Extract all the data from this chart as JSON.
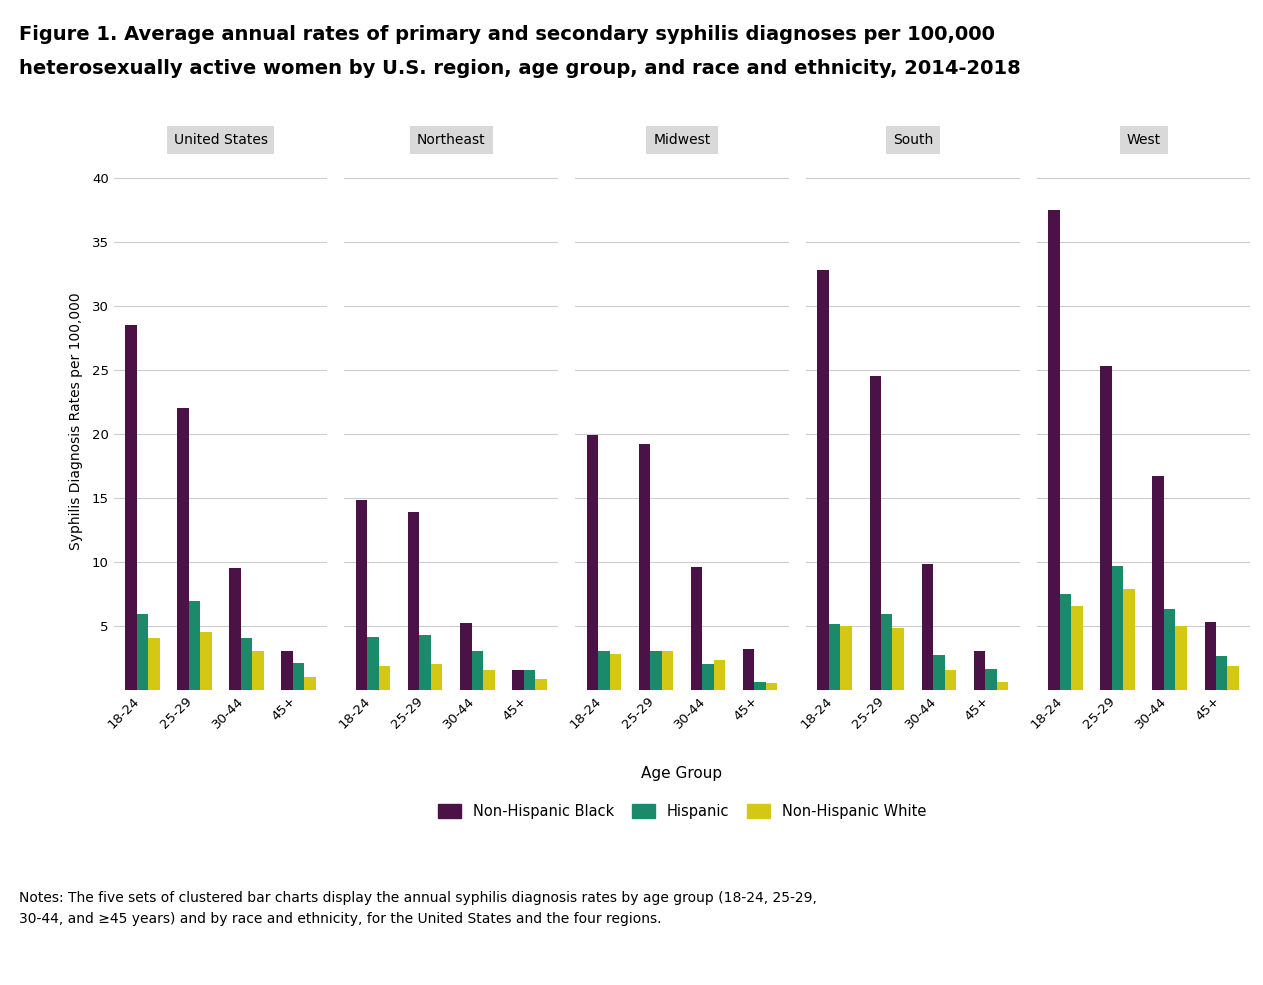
{
  "title_line1": "Figure 1. Average annual rates of primary and secondary syphilis diagnoses per 100,000",
  "title_line2": "heterosexually active women by U.S. region, age group, and race and ethnicity, 2014-2018",
  "regions": [
    "United States",
    "Northeast",
    "Midwest",
    "South",
    "West"
  ],
  "age_groups": [
    "18-24",
    "25-29",
    "30-44",
    "45+"
  ],
  "colors": {
    "Non-Hispanic Black": "#4B1248",
    "Hispanic": "#1B8A6B",
    "Non-Hispanic White": "#D4C815"
  },
  "data": {
    "United States": {
      "Non-Hispanic Black": [
        28.5,
        22.0,
        9.5,
        3.0
      ],
      "Hispanic": [
        5.9,
        6.9,
        4.0,
        2.1
      ],
      "Non-Hispanic White": [
        4.0,
        4.5,
        3.0,
        1.0
      ]
    },
    "Northeast": {
      "Non-Hispanic Black": [
        14.8,
        13.9,
        5.2,
        1.5
      ],
      "Hispanic": [
        4.1,
        4.3,
        3.0,
        1.5
      ],
      "Non-Hispanic White": [
        1.8,
        2.0,
        1.5,
        0.8
      ]
    },
    "Midwest": {
      "Non-Hispanic Black": [
        19.9,
        19.2,
        9.6,
        3.2
      ],
      "Hispanic": [
        3.0,
        3.0,
        2.0,
        0.6
      ],
      "Non-Hispanic White": [
        2.8,
        3.0,
        2.3,
        0.5
      ]
    },
    "South": {
      "Non-Hispanic Black": [
        32.8,
        24.5,
        9.8,
        3.0
      ],
      "Hispanic": [
        5.1,
        5.9,
        2.7,
        1.6
      ],
      "Non-Hispanic White": [
        5.0,
        4.8,
        1.5,
        0.6
      ]
    },
    "West": {
      "Non-Hispanic Black": [
        37.5,
        25.3,
        16.7,
        5.3
      ],
      "Hispanic": [
        7.5,
        9.7,
        6.3,
        2.6
      ],
      "Non-Hispanic White": [
        6.5,
        7.9,
        5.0,
        1.8
      ]
    }
  },
  "ylabel": "Syphilis Diagnosis Rates per 100,000",
  "xlabel": "Age Group",
  "ylim": [
    0,
    42
  ],
  "yticks": [
    5,
    10,
    15,
    20,
    25,
    30,
    35,
    40
  ],
  "legend_labels": [
    "Non-Hispanic Black",
    "Hispanic",
    "Non-Hispanic White"
  ],
  "notes": "Notes: The five sets of clustered bar charts display the annual syphilis diagnosis rates by age group (18-24, 25-29,\n30-44, and ≥45 years) and by race and ethnicity, for the United States and the four regions.",
  "background_color": "#FFFFFF",
  "panel_label_bg": "#D9D9D9",
  "grid_color": "#CCCCCC",
  "bar_width": 0.22
}
